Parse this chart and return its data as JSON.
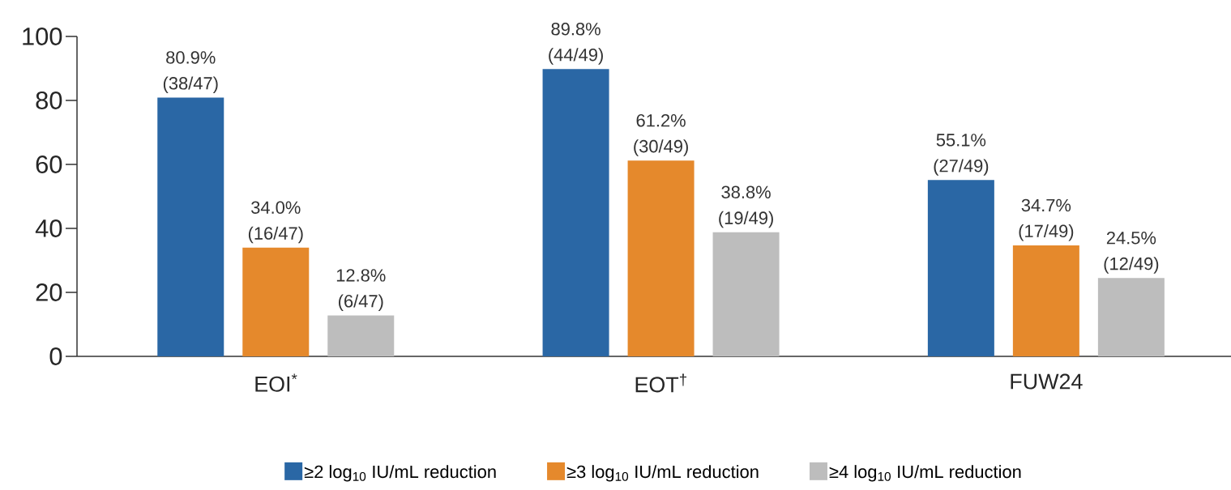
{
  "chart_data": {
    "type": "bar",
    "categories": [
      "EOI$^{*}$",
      "EOT$^{†}$",
      "FUW24"
    ],
    "series": [
      {
        "name": "≥2 log$_{10}$ IU/mL reduction",
        "color": "#2a67a5",
        "values": [
          80.9,
          89.8,
          55.1
        ],
        "value_labels": [
          "80.9% (38/47)",
          "89.8% (44/49)",
          "55.1% (27/49)"
        ]
      },
      {
        "name": "≥3 log$_{10}$ IU/mL reduction",
        "color": "#e5892c",
        "values": [
          34.0,
          61.2,
          34.7
        ],
        "value_labels": [
          "34.0% (16/47)",
          "61.2% (30/49)",
          "34.7% (17/49)"
        ]
      },
      {
        "name": "≥4 log$_{10}$ IU/mL reduction",
        "color": "#bdbdbd",
        "values": [
          12.8,
          38.8,
          24.5
        ],
        "value_labels": [
          "12.8% (6/47)",
          "38.8% (19/49)",
          "24.5% (12/49)"
        ]
      }
    ],
    "ylim": [
      0,
      100
    ],
    "yticks": [
      0,
      20,
      40,
      60,
      80,
      100
    ],
    "legend": "bottom"
  }
}
